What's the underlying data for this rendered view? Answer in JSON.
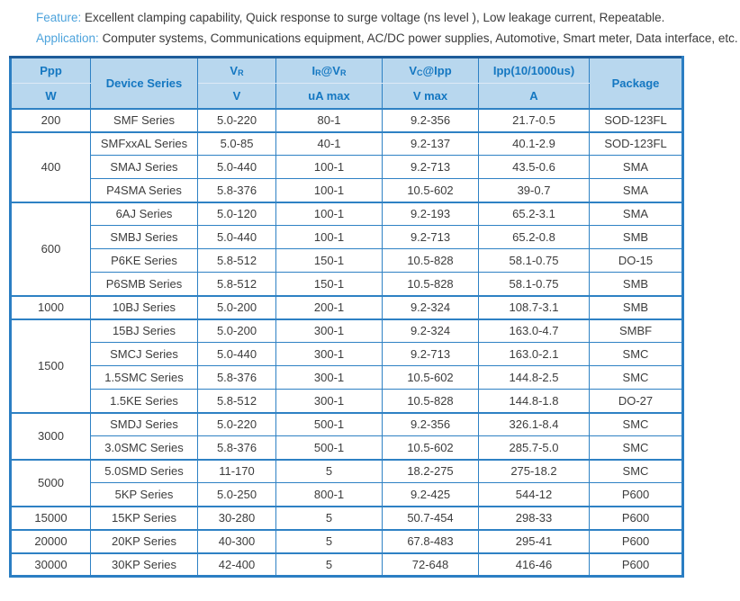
{
  "top": {
    "feature_label": "Feature:",
    "feature_text": "Excellent clamping capability, Quick response to surge voltage (ns level ), Low leakage current,  Repeatable.",
    "application_label": "Application:",
    "application_text": "Computer systems,  Communications equipment, AC/DC power supplies, Automotive, Smart meter, Data interface, etc."
  },
  "colors": {
    "header_bg": "#b8d7ee",
    "header_text": "#1477c1",
    "grid_border": "#2e81c4",
    "outer_border": "#2b7ec3",
    "outer_border_top": "#1d5c99",
    "label_blue": "#4da3dc",
    "cell_text": "#3c3c3c"
  },
  "table": {
    "header": {
      "ppp": "Ppp",
      "ppp_unit": "W",
      "device_series": "Device Series",
      "vr": {
        "base": "V",
        "sub": "R"
      },
      "vr_unit": "V",
      "ir": {
        "p1": "I",
        "s1": "R",
        "p2": "@V",
        "s2": "R"
      },
      "ir_unit": "uA max",
      "vc": {
        "base": "V",
        "sub": "C",
        "rest": "@Ipp"
      },
      "vc_unit": "V max",
      "ipp": "Ipp(10/1000us)",
      "ipp_unit": "A",
      "package": "Package"
    },
    "groups": [
      {
        "ppp": "200",
        "rows": [
          [
            "SMF Series",
            "5.0-220",
            "80-1",
            "9.2-356",
            "21.7-0.5",
            "SOD-123FL"
          ]
        ]
      },
      {
        "ppp": "400",
        "rows": [
          [
            "SMFxxAL Series",
            "5.0-85",
            "40-1",
            "9.2-137",
            "40.1-2.9",
            "SOD-123FL"
          ],
          [
            "SMAJ Series",
            "5.0-440",
            "100-1",
            "9.2-713",
            "43.5-0.6",
            "SMA"
          ],
          [
            "P4SMA Series",
            "5.8-376",
            "100-1",
            "10.5-602",
            "39-0.7",
            "SMA"
          ]
        ]
      },
      {
        "ppp": "600",
        "rows": [
          [
            "6AJ Series",
            "5.0-120",
            "100-1",
            "9.2-193",
            "65.2-3.1",
            "SMA"
          ],
          [
            "SMBJ Series",
            "5.0-440",
            "100-1",
            "9.2-713",
            "65.2-0.8",
            "SMB"
          ],
          [
            "P6KE Series",
            "5.8-512",
            "150-1",
            "10.5-828",
            "58.1-0.75",
            "DO-15"
          ],
          [
            "P6SMB Series",
            "5.8-512",
            "150-1",
            "10.5-828",
            "58.1-0.75",
            "SMB"
          ]
        ]
      },
      {
        "ppp": "1000",
        "rows": [
          [
            "10BJ Series",
            "5.0-200",
            "200-1",
            "9.2-324",
            "108.7-3.1",
            "SMB"
          ]
        ]
      },
      {
        "ppp": "1500",
        "rows": [
          [
            "15BJ Series",
            "5.0-200",
            "300-1",
            "9.2-324",
            "163.0-4.7",
            "SMBF"
          ],
          [
            "SMCJ Series",
            "5.0-440",
            "300-1",
            "9.2-713",
            "163.0-2.1",
            "SMC"
          ],
          [
            "1.5SMC Series",
            "5.8-376",
            "300-1",
            "10.5-602",
            "144.8-2.5",
            "SMC"
          ],
          [
            "1.5KE Series",
            "5.8-512",
            "300-1",
            "10.5-828",
            "144.8-1.8",
            "DO-27"
          ]
        ]
      },
      {
        "ppp": "3000",
        "rows": [
          [
            "SMDJ Series",
            "5.0-220",
            "500-1",
            "9.2-356",
            "326.1-8.4",
            "SMC"
          ],
          [
            "3.0SMC Series",
            "5.8-376",
            "500-1",
            "10.5-602",
            "285.7-5.0",
            "SMC"
          ]
        ]
      },
      {
        "ppp": "5000",
        "rows": [
          [
            "5.0SMD Series",
            "11-170",
            "5",
            "18.2-275",
            "275-18.2",
            "SMC"
          ],
          [
            "5KP Series",
            "5.0-250",
            "800-1",
            "9.2-425",
            "544-12",
            "P600"
          ]
        ]
      },
      {
        "ppp": "15000",
        "rows": [
          [
            "15KP Series",
            "30-280",
            "5",
            "50.7-454",
            "298-33",
            "P600"
          ]
        ]
      },
      {
        "ppp": "20000",
        "rows": [
          [
            "20KP Series",
            "40-300",
            "5",
            "67.8-483",
            "295-41",
            "P600"
          ]
        ]
      },
      {
        "ppp": "30000",
        "rows": [
          [
            "30KP Series",
            "42-400",
            "5",
            "72-648",
            "416-46",
            "P600"
          ]
        ]
      }
    ]
  }
}
